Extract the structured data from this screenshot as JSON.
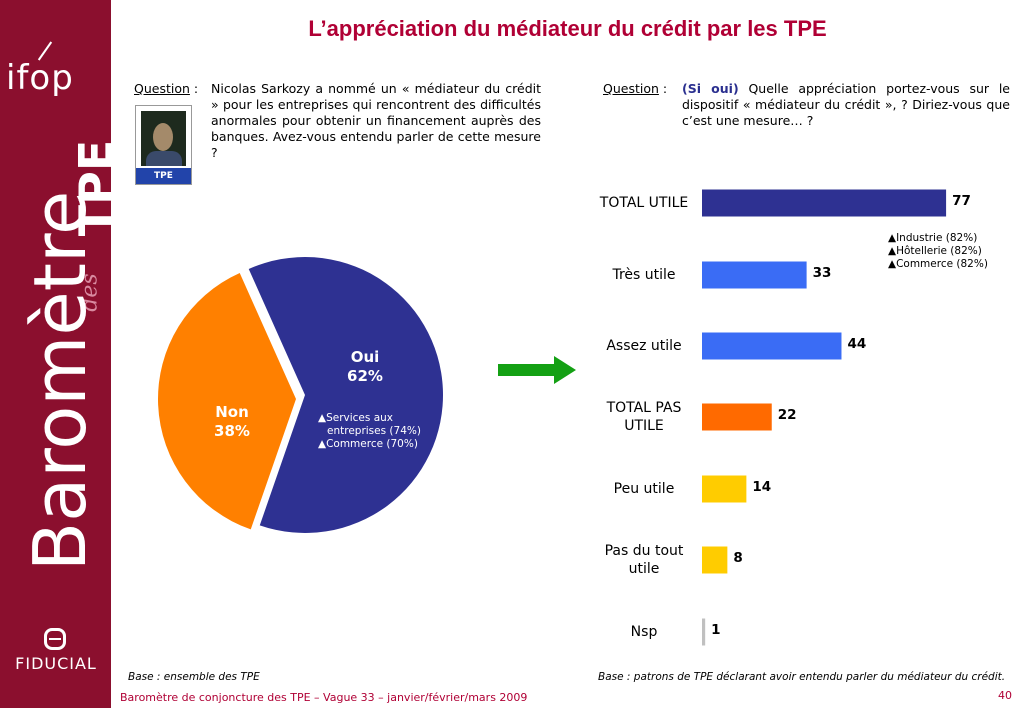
{
  "sidebar": {
    "logo_text": "ifop",
    "barometre_text": "Baromètre",
    "des_text": "des",
    "tpe_text": "TPE",
    "fiducial_text": "FIDUCIAL"
  },
  "title": "L’appréciation du médiateur du crédit par les TPE",
  "left_question": {
    "label": "Question",
    "sep": " :",
    "text": "Nicolas Sarkozy a nommé un « médiateur du crédit » pour les entreprises qui rencontrent des difficultés anormales pour obtenir un financement auprès des banques. Avez-vous entendu parler de cette mesure ?",
    "card_label": "TPE"
  },
  "right_question": {
    "label": "Question",
    "sep": " :",
    "prefix": "(Si oui)",
    "text": " Quelle appréciation portez-vous sur le dispositif « médiateur du crédit », ? Diriez-vous que c’est une mesure… ?"
  },
  "colors": {
    "sidebar": "#8b0f2e",
    "title": "#b00035",
    "oui": "#2e3192",
    "non": "#ff8000",
    "total_utile": "#2e3192",
    "utile": "#3a6cf5",
    "pas_utile": "#ff6a00",
    "peu_utile": "#ffcc00",
    "nsp": "#c0c0c0",
    "arrow": "#14a014"
  },
  "chart_data": [
    {
      "type": "pie",
      "slices": [
        {
          "label": "Oui",
          "value": 62,
          "display": "62%"
        },
        {
          "label": "Non",
          "value": 38,
          "display": "38%"
        }
      ],
      "annotation": [
        "Services aux",
        "entreprises (74%)",
        "Commerce (70%)"
      ]
    },
    {
      "type": "bar",
      "orientation": "horizontal",
      "categories": [
        "TOTAL UTILE",
        "Très utile",
        "Assez utile",
        "TOTAL PAS UTILE",
        "Peu utile",
        "Pas du tout utile",
        "Nsp"
      ],
      "values": [
        77,
        33,
        44,
        22,
        14,
        8,
        1
      ],
      "annotation": [
        "Industrie (82%)",
        "Hôtellerie (82%)",
        "Commerce (82%)"
      ]
    }
  ],
  "bases": {
    "left": "Base : ensemble des TPE",
    "right": "Base : patrons de TPE déclarant avoir entendu parler du médiateur du crédit."
  },
  "footer": {
    "text": "Baromètre de conjoncture des TPE – Vague 33 – janvier/février/mars 2009",
    "page": "40"
  }
}
